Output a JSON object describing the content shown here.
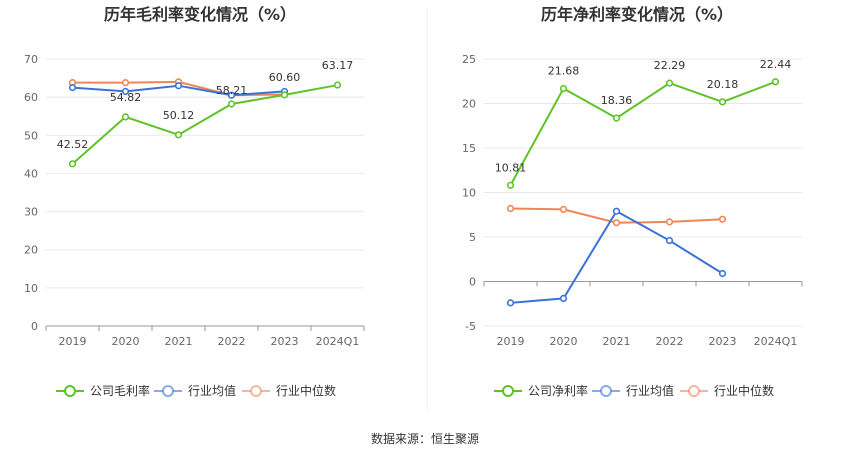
{
  "source_label": "数据来源：恒生聚源",
  "colors": {
    "company": "#5ec426",
    "industry_avg": "#3a72d8",
    "industry_median": "#f08556"
  },
  "chart_data": [
    {
      "type": "line",
      "title": "历年毛利率变化情况（%）",
      "categories": [
        "2019",
        "2020",
        "2021",
        "2022",
        "2023",
        "2024Q1"
      ],
      "ylim": [
        0,
        70
      ],
      "yticks": [
        0,
        10,
        20,
        30,
        40,
        50,
        60,
        70
      ],
      "grid": true,
      "legend_position": "bottom",
      "series": [
        {
          "name": "公司毛利率",
          "key": "company",
          "values": [
            42.52,
            54.82,
            50.12,
            58.21,
            60.6,
            63.17
          ],
          "labels": [
            "42.52",
            "54.82",
            "50.12",
            "58.21",
            "60.60",
            "63.17"
          ]
        },
        {
          "name": "行业均值",
          "key": "industry_avg",
          "values": [
            62.5,
            61.5,
            63.0,
            60.5,
            61.5,
            null
          ]
        },
        {
          "name": "行业中位数",
          "key": "industry_median",
          "values": [
            63.8,
            63.8,
            64.0,
            60.5,
            60.7,
            null
          ]
        }
      ]
    },
    {
      "type": "line",
      "title": "历年净利率变化情况（%）",
      "categories": [
        "2019",
        "2020",
        "2021",
        "2022",
        "2023",
        "2024Q1"
      ],
      "ylim": [
        -5,
        25
      ],
      "yticks": [
        -5,
        0,
        5,
        10,
        15,
        20,
        25
      ],
      "grid": true,
      "legend_position": "bottom",
      "series": [
        {
          "name": "公司净利率",
          "key": "company",
          "values": [
            10.81,
            21.68,
            18.36,
            22.29,
            20.18,
            22.44
          ],
          "labels": [
            "10.81",
            "21.68",
            "18.36",
            "22.29",
            "20.18",
            "22.44"
          ]
        },
        {
          "name": "行业均值",
          "key": "industry_avg",
          "values": [
            -2.4,
            -1.9,
            7.9,
            4.6,
            0.9,
            null
          ]
        },
        {
          "name": "行业中位数",
          "key": "industry_median",
          "values": [
            8.2,
            8.1,
            6.6,
            6.7,
            7.0,
            null
          ]
        }
      ]
    }
  ]
}
